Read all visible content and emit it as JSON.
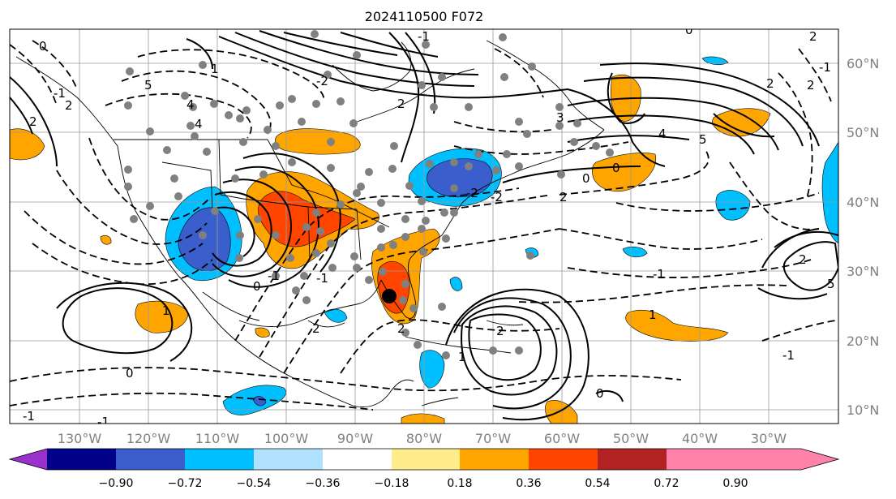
{
  "title": "2024110500 F072",
  "lon_labels": [
    "130°W",
    "120°W",
    "110°W",
    "100°W",
    "90°W",
    "80°W",
    "70°W",
    "60°W",
    "50°W",
    "40°W",
    "30°W"
  ],
  "lat_labels": [
    "60°N",
    "50°N",
    "40°N",
    "30°N",
    "20°N",
    "10°N"
  ],
  "colorbar": {
    "colors": [
      "#9932cc",
      "#00008b",
      "#3a5fcd",
      "#00bfff",
      "#b0e2ff",
      "#ffffff",
      "#ffec8b",
      "#ffa500",
      "#ff4500",
      "#b22222",
      "#ff82ab"
    ],
    "tick_labels": [
      "−0.90",
      "−0.72",
      "−0.54",
      "−0.36",
      "−0.18",
      "0.18",
      "0.36",
      "0.54",
      "0.72",
      "0.90"
    ]
  },
  "contour_labels": [
    "0",
    "2",
    "5",
    "4",
    "2",
    "0",
    "2",
    "4",
    "5",
    "2",
    "-1",
    "-1",
    "-1",
    "1",
    "2",
    "2",
    "5",
    "0",
    "-2",
    "-2",
    "-1",
    "3",
    "2",
    "2",
    "1",
    "4",
    "2",
    "0",
    "-2",
    "-1",
    "1",
    "0",
    "-1",
    "-1",
    "2",
    "1",
    "-1",
    "0",
    "2",
    "-1",
    "0"
  ]
}
